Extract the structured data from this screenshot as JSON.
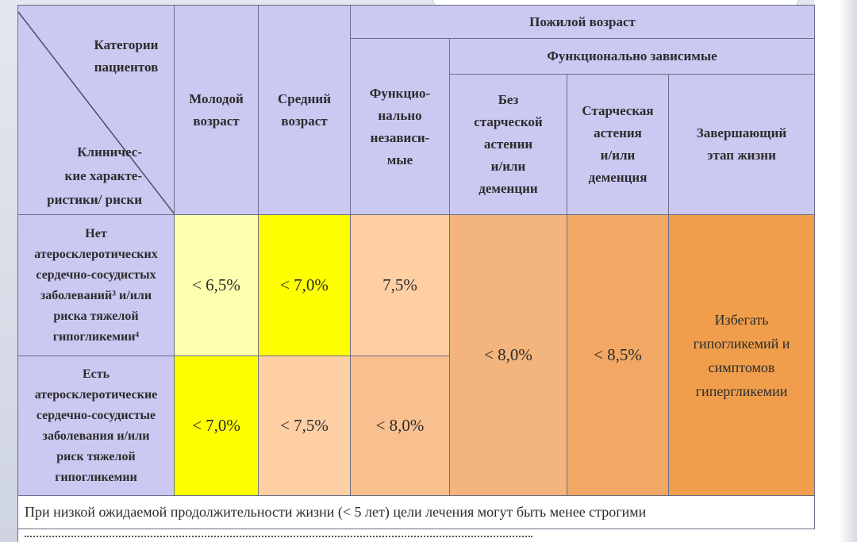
{
  "table": {
    "corner": {
      "categories": [
        "Категории",
        "пациентов"
      ],
      "clinical": [
        "Клиничес-",
        "кие характе-",
        "ристики/ риски"
      ]
    },
    "headers": {
      "young": [
        "Молодой",
        "возраст"
      ],
      "middle": [
        "Средний",
        "возраст"
      ],
      "elderly": "Пожилой возраст",
      "func_independent": [
        "Функцио-",
        "нально",
        "независи-",
        "мые"
      ],
      "func_dependent": "Функционально зависимые",
      "no_frailty": [
        "Без",
        "старческой",
        "астении",
        "и/или",
        "деменции"
      ],
      "frailty": [
        "Старческая",
        "астения",
        "и/или",
        "деменция"
      ],
      "end_of_life": [
        "Завершающий",
        "этап жизни"
      ]
    },
    "row1_label": [
      "Нет",
      "атеросклеротических",
      "сердечно-сосудистых",
      "заболеваний³ и/или",
      "риска тяжелой",
      "гипогликемии⁴"
    ],
    "row2_label": [
      "Есть",
      "атеросклеротические",
      "сердечно-сосудистые",
      "заболевания и/или",
      "риск тяжелой",
      "гипогликемии"
    ],
    "row1_values": {
      "young": "< 6,5%",
      "middle": "< 7,0%",
      "func_independent": "7,5%"
    },
    "row2_values": {
      "young": "< 7,0%",
      "middle": "< 7,5%",
      "func_independent": "< 8,0%"
    },
    "shared_values": {
      "no_frailty": "< 8,0%",
      "frailty": "< 8,5%",
      "end_of_life": [
        "Избегать",
        "гипогликемий и",
        "симптомов",
        "гипергликемии"
      ]
    },
    "footnote": "При низкой ожидаемой продолжительности жизни (< 5 лет) цели лечения могут быть менее строгими"
  },
  "colors": {
    "header": "#cbc9f2",
    "light_yellow": "#ffffb0",
    "yellow": "#ffff00",
    "peach": "#ffcfa4",
    "orange": "#f09e4c"
  }
}
